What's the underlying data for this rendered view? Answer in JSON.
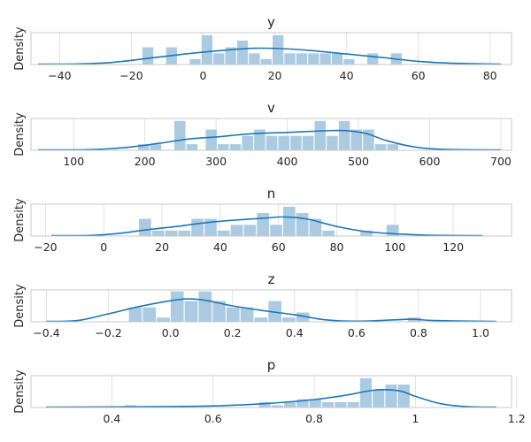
{
  "figure": {
    "hist_color": "#a6c8e0",
    "kde_color": "#1f77b4"
  },
  "chart_data": [
    {
      "type": "histogram",
      "title": "y",
      "ylabel": "Density",
      "xlabel": "",
      "xlim": [
        -48,
        86
      ],
      "xticks": [
        -40,
        -20,
        0,
        20,
        40,
        60,
        80
      ],
      "grid": true,
      "bins": [
        {
          "x0": -17,
          "x1": -13.7,
          "h": 0.55
        },
        {
          "x0": -10.4,
          "x1": -7.1,
          "h": 0.55
        },
        {
          "x0": -3.8,
          "x1": -0.5,
          "h": 0.18
        },
        {
          "x0": -0.5,
          "x1": 2.8,
          "h": 0.93
        },
        {
          "x0": 2.8,
          "x1": 6.1,
          "h": 0.36
        },
        {
          "x0": 6.1,
          "x1": 9.4,
          "h": 0.55
        },
        {
          "x0": 9.4,
          "x1": 12.7,
          "h": 0.76
        },
        {
          "x0": 12.7,
          "x1": 16.0,
          "h": 0.36
        },
        {
          "x0": 16.0,
          "x1": 19.3,
          "h": 0.18
        },
        {
          "x0": 19.3,
          "x1": 22.6,
          "h": 0.93
        },
        {
          "x0": 22.6,
          "x1": 25.9,
          "h": 0.36
        },
        {
          "x0": 25.9,
          "x1": 29.2,
          "h": 0.36
        },
        {
          "x0": 29.2,
          "x1": 32.5,
          "h": 0.36
        },
        {
          "x0": 32.5,
          "x1": 35.8,
          "h": 0.36
        },
        {
          "x0": 35.8,
          "x1": 39.1,
          "h": 0.36
        },
        {
          "x0": 39.1,
          "x1": 42.4,
          "h": 0.18
        },
        {
          "x0": 45.7,
          "x1": 49.0,
          "h": 0.36
        },
        {
          "x0": 52.3,
          "x1": 55.6,
          "h": 0.36
        }
      ],
      "kde": [
        [
          -46,
          0.01
        ],
        [
          -35,
          0.02
        ],
        [
          -25,
          0.07
        ],
        [
          -15,
          0.2
        ],
        [
          -5,
          0.33
        ],
        [
          5,
          0.44
        ],
        [
          14,
          0.51
        ],
        [
          22,
          0.5
        ],
        [
          30,
          0.44
        ],
        [
          40,
          0.33
        ],
        [
          50,
          0.22
        ],
        [
          60,
          0.1
        ],
        [
          70,
          0.04
        ],
        [
          83,
          0.01
        ]
      ]
    },
    {
      "type": "histogram",
      "title": "v",
      "ylabel": "Density",
      "xlabel": "",
      "xlim": [
        40,
        715
      ],
      "xticks": [
        100,
        200,
        300,
        400,
        500,
        600,
        700
      ],
      "grid": true,
      "bins": [
        {
          "x0": 190,
          "x1": 207,
          "h": 0.2
        },
        {
          "x0": 207,
          "x1": 224,
          "h": 0.2
        },
        {
          "x0": 241,
          "x1": 258,
          "h": 0.93
        },
        {
          "x0": 258,
          "x1": 275,
          "h": 0.2
        },
        {
          "x0": 285,
          "x1": 302,
          "h": 0.66
        },
        {
          "x0": 302,
          "x1": 319,
          "h": 0.2
        },
        {
          "x0": 319,
          "x1": 336,
          "h": 0.2
        },
        {
          "x0": 336,
          "x1": 353,
          "h": 0.46
        },
        {
          "x0": 353,
          "x1": 370,
          "h": 0.66
        },
        {
          "x0": 370,
          "x1": 387,
          "h": 0.46
        },
        {
          "x0": 387,
          "x1": 404,
          "h": 0.46
        },
        {
          "x0": 404,
          "x1": 421,
          "h": 0.46
        },
        {
          "x0": 421,
          "x1": 438,
          "h": 0.46
        },
        {
          "x0": 438,
          "x1": 455,
          "h": 0.93
        },
        {
          "x0": 455,
          "x1": 472,
          "h": 0.46
        },
        {
          "x0": 472,
          "x1": 489,
          "h": 0.93
        },
        {
          "x0": 489,
          "x1": 506,
          "h": 0.66
        },
        {
          "x0": 506,
          "x1": 523,
          "h": 0.66
        },
        {
          "x0": 523,
          "x1": 540,
          "h": 0.2
        },
        {
          "x0": 540,
          "x1": 557,
          "h": 0.2
        }
      ],
      "kde": [
        [
          50,
          0.01
        ],
        [
          120,
          0.02
        ],
        [
          170,
          0.08
        ],
        [
          220,
          0.22
        ],
        [
          260,
          0.35
        ],
        [
          300,
          0.42
        ],
        [
          350,
          0.52
        ],
        [
          400,
          0.56
        ],
        [
          450,
          0.61
        ],
        [
          480,
          0.62
        ],
        [
          510,
          0.53
        ],
        [
          540,
          0.3
        ],
        [
          580,
          0.1
        ],
        [
          620,
          0.03
        ],
        [
          700,
          0.01
        ]
      ]
    },
    {
      "type": "histogram",
      "title": "n",
      "ylabel": "Density",
      "xlabel": "",
      "xlim": [
        -25,
        140
      ],
      "xticks": [
        -20,
        0,
        20,
        40,
        60,
        80,
        100,
        120
      ],
      "grid": true,
      "bins": [
        {
          "x0": 12,
          "x1": 16.5,
          "h": 0.55
        },
        {
          "x0": 16.5,
          "x1": 21,
          "h": 0.18
        },
        {
          "x0": 21,
          "x1": 25.5,
          "h": 0.18
        },
        {
          "x0": 25.5,
          "x1": 30,
          "h": 0.18
        },
        {
          "x0": 30,
          "x1": 34.5,
          "h": 0.55
        },
        {
          "x0": 34.5,
          "x1": 39,
          "h": 0.55
        },
        {
          "x0": 39,
          "x1": 43.5,
          "h": 0.18
        },
        {
          "x0": 43.5,
          "x1": 48,
          "h": 0.36
        },
        {
          "x0": 48,
          "x1": 52.5,
          "h": 0.36
        },
        {
          "x0": 52.5,
          "x1": 57,
          "h": 0.73
        },
        {
          "x0": 57,
          "x1": 61.5,
          "h": 0.36
        },
        {
          "x0": 61.5,
          "x1": 66,
          "h": 0.93
        },
        {
          "x0": 66,
          "x1": 70.5,
          "h": 0.73
        },
        {
          "x0": 70.5,
          "x1": 75,
          "h": 0.55
        },
        {
          "x0": 75,
          "x1": 79.5,
          "h": 0.18
        },
        {
          "x0": 88,
          "x1": 92.5,
          "h": 0.18
        },
        {
          "x0": 97,
          "x1": 101.5,
          "h": 0.36
        }
      ],
      "kde": [
        [
          -18,
          0.01
        ],
        [
          -5,
          0.02
        ],
        [
          5,
          0.08
        ],
        [
          15,
          0.2
        ],
        [
          25,
          0.3
        ],
        [
          35,
          0.42
        ],
        [
          45,
          0.5
        ],
        [
          55,
          0.56
        ],
        [
          62,
          0.6
        ],
        [
          70,
          0.53
        ],
        [
          80,
          0.3
        ],
        [
          90,
          0.14
        ],
        [
          100,
          0.07
        ],
        [
          110,
          0.03
        ],
        [
          130,
          0.01
        ]
      ]
    },
    {
      "type": "histogram",
      "title": "z",
      "ylabel": "Density",
      "xlabel": "",
      "xlim": [
        -0.45,
        1.1
      ],
      "xticks": [
        -0.4,
        -0.2,
        0.0,
        0.2,
        0.4,
        0.6,
        0.8,
        1.0
      ],
      "xtick_labels": [
        "−0.4",
        "−0.2",
        "0.0",
        "0.2",
        "0.4",
        "0.6",
        "0.8",
        "1.0"
      ],
      "grid": true,
      "bins": [
        {
          "x0": -0.135,
          "x1": -0.09,
          "h": 0.46
        },
        {
          "x0": -0.09,
          "x1": -0.045,
          "h": 0.46
        },
        {
          "x0": -0.045,
          "x1": 0.0,
          "h": 0.14
        },
        {
          "x0": 0.0,
          "x1": 0.045,
          "h": 0.96
        },
        {
          "x0": 0.045,
          "x1": 0.09,
          "h": 0.66
        },
        {
          "x0": 0.09,
          "x1": 0.135,
          "h": 0.96
        },
        {
          "x0": 0.135,
          "x1": 0.18,
          "h": 0.66
        },
        {
          "x0": 0.18,
          "x1": 0.225,
          "h": 0.46
        },
        {
          "x0": 0.225,
          "x1": 0.27,
          "h": 0.46
        },
        {
          "x0": 0.27,
          "x1": 0.315,
          "h": 0.14
        },
        {
          "x0": 0.315,
          "x1": 0.36,
          "h": 0.66
        },
        {
          "x0": 0.36,
          "x1": 0.405,
          "h": 0.14
        },
        {
          "x0": 0.405,
          "x1": 0.45,
          "h": 0.3
        },
        {
          "x0": 0.765,
          "x1": 0.81,
          "h": 0.14
        }
      ],
      "kde": [
        [
          -0.4,
          0.01
        ],
        [
          -0.3,
          0.04
        ],
        [
          -0.2,
          0.25
        ],
        [
          -0.1,
          0.48
        ],
        [
          0.0,
          0.66
        ],
        [
          0.06,
          0.72
        ],
        [
          0.12,
          0.66
        ],
        [
          0.2,
          0.5
        ],
        [
          0.3,
          0.35
        ],
        [
          0.4,
          0.22
        ],
        [
          0.5,
          0.06
        ],
        [
          0.6,
          0.02
        ],
        [
          0.7,
          0.05
        ],
        [
          0.78,
          0.08
        ],
        [
          0.85,
          0.04
        ],
        [
          1.05,
          0.01
        ]
      ]
    },
    {
      "type": "histogram",
      "title": "p",
      "ylabel": "Density",
      "xlabel": "",
      "xlim": [
        0.24,
        1.19
      ],
      "xticks": [
        0.4,
        0.6,
        0.8,
        1.0,
        1.2
      ],
      "grid": true,
      "bins": [
        {
          "x0": 0.425,
          "x1": 0.45,
          "h": 0.08
        },
        {
          "x0": 0.69,
          "x1": 0.715,
          "h": 0.18
        },
        {
          "x0": 0.715,
          "x1": 0.74,
          "h": 0.08
        },
        {
          "x0": 0.74,
          "x1": 0.765,
          "h": 0.18
        },
        {
          "x0": 0.765,
          "x1": 0.79,
          "h": 0.27
        },
        {
          "x0": 0.79,
          "x1": 0.815,
          "h": 0.27
        },
        {
          "x0": 0.815,
          "x1": 0.84,
          "h": 0.18
        },
        {
          "x0": 0.84,
          "x1": 0.865,
          "h": 0.18
        },
        {
          "x0": 0.865,
          "x1": 0.89,
          "h": 0.18
        },
        {
          "x0": 0.89,
          "x1": 0.915,
          "h": 0.93
        },
        {
          "x0": 0.915,
          "x1": 0.94,
          "h": 0.55
        },
        {
          "x0": 0.94,
          "x1": 0.965,
          "h": 0.73
        },
        {
          "x0": 0.965,
          "x1": 0.99,
          "h": 0.73
        }
      ],
      "kde": [
        [
          0.27,
          0.01
        ],
        [
          0.4,
          0.02
        ],
        [
          0.5,
          0.03
        ],
        [
          0.6,
          0.05
        ],
        [
          0.7,
          0.12
        ],
        [
          0.8,
          0.25
        ],
        [
          0.86,
          0.38
        ],
        [
          0.9,
          0.5
        ],
        [
          0.93,
          0.56
        ],
        [
          0.97,
          0.52
        ],
        [
          1.0,
          0.35
        ],
        [
          1.05,
          0.12
        ],
        [
          1.1,
          0.03
        ],
        [
          1.16,
          0.01
        ]
      ]
    }
  ]
}
